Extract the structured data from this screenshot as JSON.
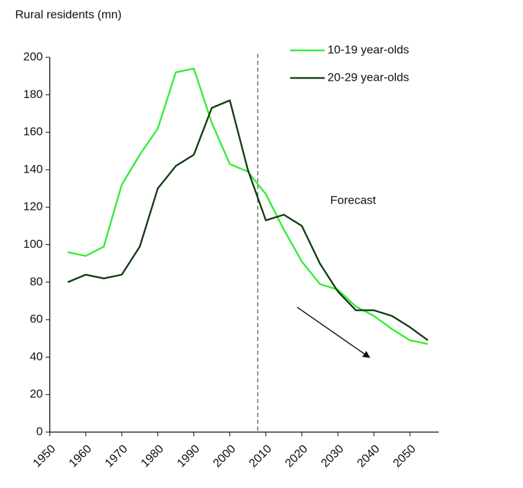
{
  "chart_data": {
    "type": "line",
    "ylabel": "Rural residents (mn)",
    "annotation": "Forecast",
    "x": [
      1955,
      1960,
      1965,
      1970,
      1975,
      1980,
      1985,
      1990,
      1995,
      2000,
      2005,
      2010,
      2015,
      2020,
      2025,
      2030,
      2035,
      2040,
      2045,
      2050,
      2055
    ],
    "series": [
      {
        "name": "10-19 year-olds",
        "color": "#33ee33",
        "values": [
          96,
          94,
          99,
          132,
          148,
          162,
          192,
          194,
          165,
          143,
          139,
          127,
          108,
          91,
          79,
          76,
          67,
          62,
          55,
          49,
          47
        ]
      },
      {
        "name": "20-29 year-olds",
        "color": "#143d14",
        "values": [
          80,
          84,
          82,
          84,
          99,
          130,
          142,
          148,
          173,
          177,
          140,
          113,
          116,
          110,
          90,
          75,
          65,
          65,
          62,
          56,
          49
        ]
      }
    ],
    "xlim": [
      1950,
      2058
    ],
    "xticks": [
      1950,
      1960,
      1970,
      1980,
      1990,
      2000,
      2010,
      2020,
      2030,
      2040,
      2050
    ],
    "ylim": [
      0,
      200
    ],
    "yticks": [
      0,
      20,
      40,
      60,
      80,
      100,
      120,
      140,
      160,
      180,
      200
    ],
    "grid": false
  }
}
